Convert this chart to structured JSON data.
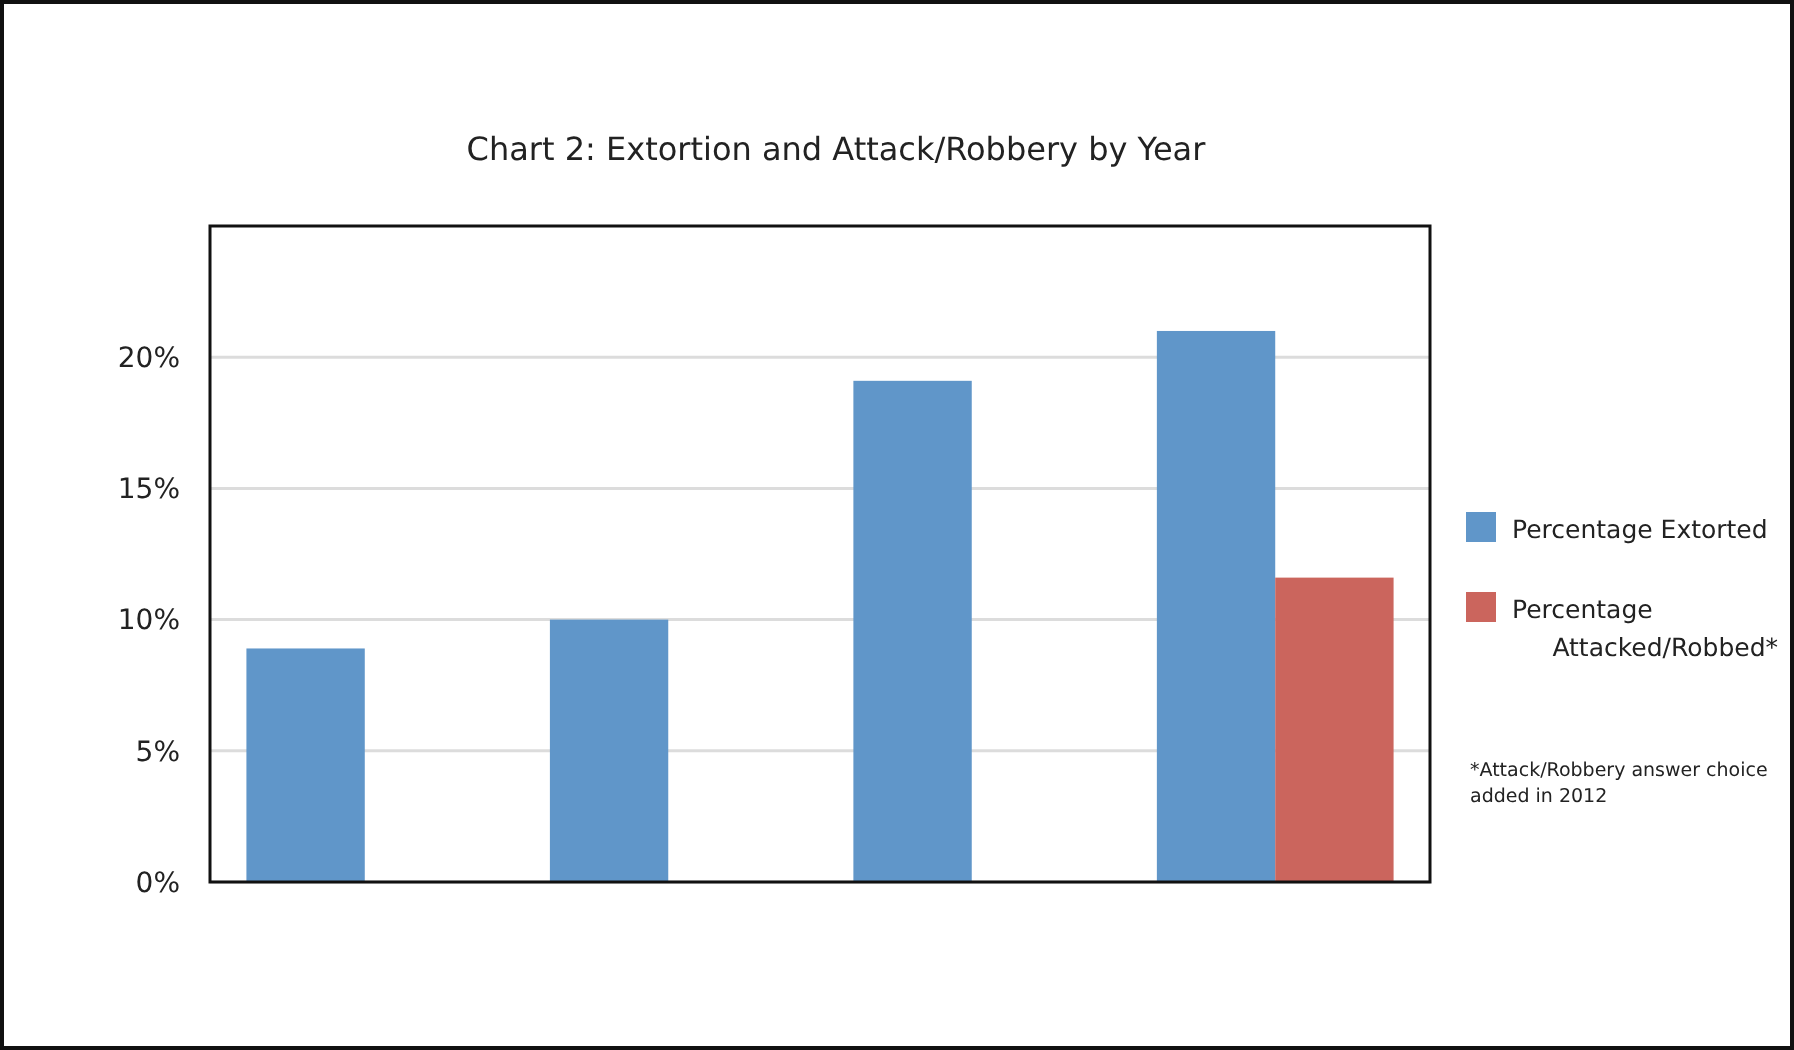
{
  "chart_data": {
    "type": "bar",
    "title": "Chart 2: Extortion and Attack/Robbery by Year",
    "categories": [
      null,
      null,
      null,
      null
    ],
    "series": [
      {
        "name": "Percentage Extorted",
        "color": "#6096c9",
        "values": [
          8.9,
          10.0,
          19.1,
          21.0
        ]
      },
      {
        "name": "Percentage Attacked/Robbed*",
        "color": "#cb655d",
        "values": [
          null,
          null,
          null,
          11.6
        ]
      }
    ],
    "ylim": [
      0,
      25
    ],
    "yticks": [
      {
        "value": 0,
        "label": "0%"
      },
      {
        "value": 5,
        "label": "5%"
      },
      {
        "value": 10,
        "label": "10%"
      },
      {
        "value": 15,
        "label": "15%"
      },
      {
        "value": 20,
        "label": "20%"
      }
    ],
    "grid": "y",
    "legend": "right",
    "annotations": [
      "*Attack/Robbery answer choice added in 2012"
    ]
  }
}
